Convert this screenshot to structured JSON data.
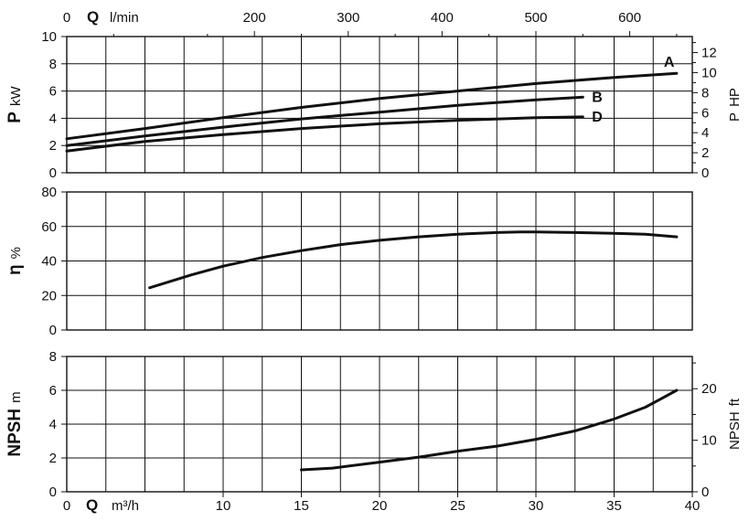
{
  "chart_data": [
    {
      "type": "line",
      "id": "power",
      "x_axis_top": {
        "symbol": "Q",
        "unit": "l/min",
        "zero_label": "0",
        "ticks": [
          200,
          300,
          400,
          500,
          600
        ],
        "range": [
          0,
          666.67
        ]
      },
      "y_left": {
        "symbol": "P",
        "unit": "kW",
        "range": [
          0,
          10
        ],
        "ticks": [
          0,
          2,
          4,
          6,
          8,
          10
        ]
      },
      "y_right": {
        "symbol": "P",
        "unit": "HP",
        "range": [
          0,
          13.6
        ],
        "ticks": [
          0,
          2,
          4,
          6,
          8,
          10,
          12
        ]
      },
      "grid": true,
      "series": [
        {
          "name": "A",
          "x": [
            0,
            5,
            10,
            15,
            20,
            25,
            30,
            35,
            39
          ],
          "y": [
            2.5,
            3.25,
            4.05,
            4.8,
            5.45,
            6.0,
            6.55,
            7.0,
            7.3
          ]
        },
        {
          "name": "B",
          "x": [
            0,
            5,
            10,
            15,
            20,
            25,
            30,
            33
          ],
          "y": [
            2.0,
            2.7,
            3.35,
            3.95,
            4.45,
            4.95,
            5.35,
            5.55
          ]
        },
        {
          "name": "D",
          "x": [
            0,
            5,
            10,
            15,
            20,
            25,
            30,
            33
          ],
          "y": [
            1.6,
            2.3,
            2.8,
            3.25,
            3.6,
            3.85,
            4.05,
            4.1
          ]
        }
      ]
    },
    {
      "type": "line",
      "id": "efficiency",
      "y_left": {
        "symbol": "η",
        "unit": "%",
        "range": [
          0,
          80
        ],
        "ticks": [
          0,
          20,
          40,
          60,
          80
        ]
      },
      "grid": true,
      "series": [
        {
          "x": [
            5.3,
            8,
            10,
            12.5,
            15,
            17.5,
            20,
            22.5,
            25,
            27.5,
            29,
            30,
            32.5,
            35,
            37,
            39
          ],
          "y": [
            24.5,
            32,
            37,
            42,
            46,
            49.5,
            52,
            54,
            55.5,
            56.5,
            56.8,
            56.8,
            56.5,
            56,
            55.5,
            54
          ]
        }
      ]
    },
    {
      "type": "line",
      "id": "npsh",
      "x_axis_bottom": {
        "symbol": "Q",
        "unit": "m³/h",
        "zero_label": "0",
        "ticks": [
          10,
          15,
          20,
          25,
          30,
          35,
          40
        ],
        "range": [
          0,
          40
        ]
      },
      "y_left": {
        "symbol": "NPSH",
        "unit": "m",
        "range": [
          0,
          8
        ],
        "ticks": [
          0,
          2,
          4,
          6,
          8
        ]
      },
      "y_right": {
        "symbol": "NPSH",
        "unit": "ft",
        "range": [
          0,
          26.25
        ],
        "ticks": [
          0,
          10,
          20
        ]
      },
      "grid": true,
      "series": [
        {
          "x": [
            15,
            17,
            20,
            22.5,
            25,
            27.5,
            30,
            32.5,
            35,
            37,
            38,
            39
          ],
          "y": [
            1.3,
            1.4,
            1.75,
            2.05,
            2.4,
            2.7,
            3.1,
            3.6,
            4.3,
            5.0,
            5.5,
            6.0
          ]
        }
      ]
    }
  ]
}
